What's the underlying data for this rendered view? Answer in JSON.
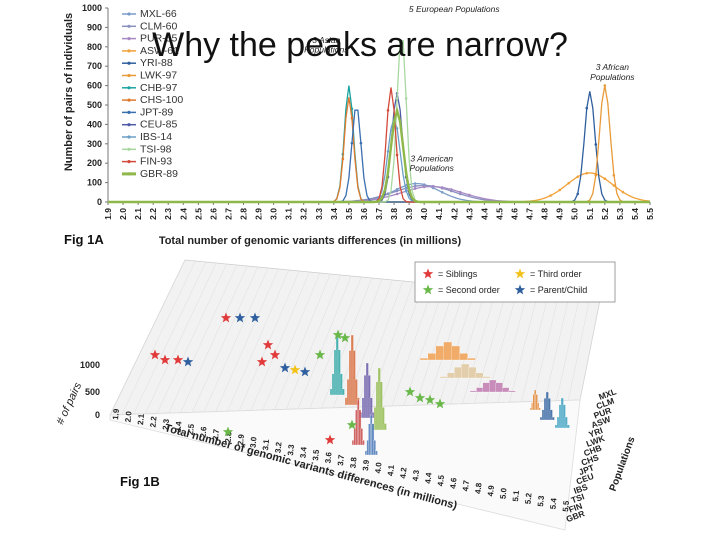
{
  "slide_title": "Why the peaks are narrow?",
  "chart_data": [
    {
      "type": "line",
      "panel": "Fig 1A",
      "panel_label": "Fig 1A",
      "xlabel": "Total number of genomic variants differences (in millions)",
      "ylabel": "Number of pairs of individuals",
      "ylim": [
        0,
        1000
      ],
      "yticks": [
        0,
        100,
        200,
        300,
        400,
        500,
        600,
        700,
        800,
        900,
        1000
      ],
      "xlim": [
        1.9,
        5.5
      ],
      "x_ticks": [
        "1.9",
        "2.0",
        "2.1",
        "2.2",
        "2.3",
        "2.4",
        "2.5",
        "2.6",
        "2.7",
        "2.8",
        "2.9",
        "3.0",
        "3.1",
        "3.2",
        "3.3",
        "3.4",
        "3.5",
        "3.6",
        "3.7",
        "3.8",
        "3.9",
        "4.0",
        "4.1",
        "4.2",
        "4.3",
        "4.4",
        "4.5",
        "4.6",
        "4.7",
        "4.8",
        "4.9",
        "5.0",
        "5.1",
        "5.2",
        "5.3",
        "5.4",
        "5.5"
      ],
      "legend_position": "top-left",
      "series": [
        {
          "name": "MXL-66",
          "color": "#7a9cc9",
          "peak_x": 3.95,
          "peak_y": 95,
          "width": 0.15
        },
        {
          "name": "CLM-60",
          "color": "#8a90c0",
          "peak_x": 4.0,
          "peak_y": 85,
          "width": 0.2
        },
        {
          "name": "PUR-55",
          "color": "#a889c4",
          "peak_x": 4.05,
          "peak_y": 80,
          "width": 0.2
        },
        {
          "name": "ASW-61",
          "color": "#f2a23a",
          "peak_x": 5.1,
          "peak_y": 150,
          "width": 0.15
        },
        {
          "name": "YRI-88",
          "color": "#2f5f9e",
          "peak_x": 5.1,
          "peak_y": 570,
          "width": 0.035
        },
        {
          "name": "LWK-97",
          "color": "#e89a3a",
          "peak_x": 5.2,
          "peak_y": 600,
          "width": 0.035
        },
        {
          "name": "CHB-97",
          "color": "#1aa3a3",
          "peak_x": 3.5,
          "peak_y": 600,
          "width": 0.03
        },
        {
          "name": "CHS-100",
          "color": "#e07a2e",
          "peak_x": 3.5,
          "peak_y": 540,
          "width": 0.03
        },
        {
          "name": "JPT-89",
          "color": "#3a6fb0",
          "peak_x": 3.55,
          "peak_y": 500,
          "width": 0.03
        },
        {
          "name": "CEU-85",
          "color": "#4d5aa8",
          "peak_x": 3.82,
          "peak_y": 560,
          "width": 0.035
        },
        {
          "name": "IBS-14",
          "color": "#6aa0c8",
          "peak_x": 3.8,
          "peak_y": 430,
          "width": 0.04
        },
        {
          "name": "TSI-98",
          "color": "#a8d8a0",
          "peak_x": 3.85,
          "peak_y": 880,
          "width": 0.03
        },
        {
          "name": "FIN-93",
          "color": "#d34a3a",
          "peak_x": 3.78,
          "peak_y": 590,
          "width": 0.03
        },
        {
          "name": "GBR-89",
          "color": "#8fb84a",
          "peak_x": 3.82,
          "peak_y": 470,
          "width": 0.04
        }
      ],
      "annotations": [
        {
          "text": "5 European Populations",
          "x": 4.2,
          "y": 1000
        },
        {
          "text": "3 Asian",
          "x": 3.35,
          "y": 840
        },
        {
          "text": "Populations",
          "x": 3.35,
          "y": 790
        },
        {
          "text": "3 African",
          "x": 5.25,
          "y": 700
        },
        {
          "text": "Populations",
          "x": 5.25,
          "y": 650
        },
        {
          "text": "3 American",
          "x": 4.05,
          "y": 230
        },
        {
          "text": "Populations",
          "x": 4.05,
          "y": 180
        }
      ]
    },
    {
      "type": "bar",
      "panel": "Fig 1B",
      "panel_label": "Fig 1B",
      "projection": "3d",
      "xlabel": "Total number of genomic variants differences (in millions)",
      "ylabel": "# of pairs",
      "zlabel": "Populations",
      "zticks": [
        0,
        500,
        1000
      ],
      "x_ticks": [
        "1.9",
        "2.0",
        "2.1",
        "2.2",
        "2.3",
        "2.4",
        "2.5",
        "2.6",
        "2.7",
        "2.8",
        "2.9",
        "3.0",
        "3.1",
        "3.2",
        "3.3",
        "3.4",
        "3.5",
        "3.6",
        "3.7",
        "3.8",
        "3.9",
        "4.0",
        "4.1",
        "4.2",
        "4.3",
        "4.4",
        "4.5",
        "4.6",
        "4.7",
        "4.8",
        "4.9",
        "5.0",
        "5.1",
        "5.2",
        "5.3",
        "5.4",
        "5.5"
      ],
      "populations": [
        "MXL",
        "CLM",
        "PUR",
        "ASW",
        "YRI",
        "LWK",
        "CHB",
        "CHS",
        "JPT",
        "CEU",
        "IBS",
        "TSI",
        "FIN",
        "GBR"
      ],
      "legend": [
        {
          "symbol": "red-star",
          "label": "= Siblings",
          "color": "#e03a3a"
        },
        {
          "symbol": "yellow-star",
          "label": "= Third order",
          "color": "#f2c21a"
        },
        {
          "symbol": "green-star",
          "label": "= Second order",
          "color": "#6ab84a"
        },
        {
          "symbol": "blue-star",
          "label": "= Parent/Child",
          "color": "#2f5f9e"
        }
      ]
    }
  ]
}
